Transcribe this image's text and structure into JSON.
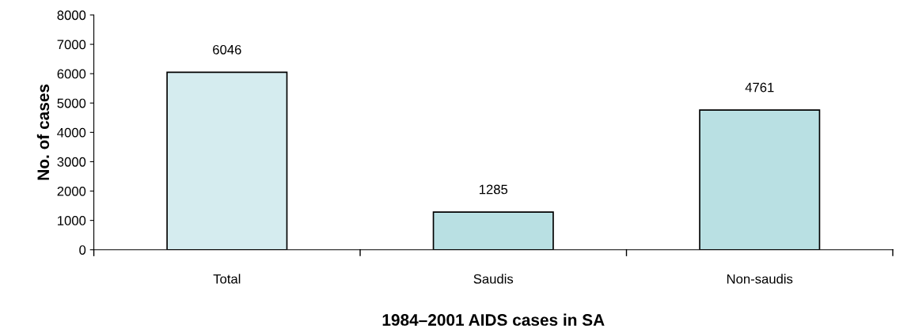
{
  "chart_data": {
    "type": "bar",
    "xlabel": "1984–2001 AIDS cases in SA",
    "ylabel": "No. of cases",
    "categories": [
      "Total",
      "Saudis",
      "Non-saudis"
    ],
    "values": [
      6046,
      1285,
      4761
    ],
    "colors": [
      "#d5ecef",
      "#b9e0e3",
      "#b9e0e3"
    ],
    "ylim": [
      0,
      8000
    ],
    "yticks": [
      0,
      1000,
      2000,
      3000,
      4000,
      5000,
      6000,
      7000,
      8000
    ],
    "grid": false,
    "data_labels": true
  }
}
